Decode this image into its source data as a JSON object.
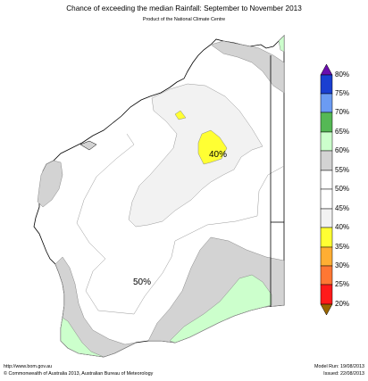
{
  "header": {
    "title": "Chance of exceeding the median Rainfall: September to November 2013",
    "subtitle": "Product of the National Climate Centre"
  },
  "map": {
    "labels": {
      "center": "40%",
      "south": "50%"
    },
    "colors": {
      "land": "#ffffff",
      "band_45_50": "#f2f2f2",
      "band_40_45": "#d3d3d3",
      "band_below_40": "#ffff33",
      "band_60_65": "#ccffcc",
      "outline": "#000000"
    }
  },
  "legend": {
    "labels": [
      "80%",
      "75%",
      "70%",
      "65%",
      "60%",
      "55%",
      "50%",
      "45%",
      "40%",
      "35%",
      "30%",
      "25%",
      "20%"
    ],
    "colors": {
      "75_80": "#1a3fd1",
      "70_75": "#6b9bf2",
      "65_70": "#55b855",
      "60_65": "#ccffcc",
      "55_60": "#d3d3d3",
      "50_55": "#ffffff",
      "45_50": "#ffffff",
      "40_45": "#f2f2f2",
      "35_40": "#ffff33",
      "30_35": "#ffae33",
      "25_30": "#ff7733",
      "20_25": "#ff1a1a",
      "top_arrow": "#6a0dad",
      "bottom_arrow": "#996600"
    }
  },
  "footer": {
    "url": "http://www.bom.gov.au",
    "copyright": "©  Commonwealth of Australia 2013, Australian Bureau of Meteorology",
    "model_run": "Model Run: 19/08/2013",
    "issued": "Issued: 22/08/2013"
  }
}
